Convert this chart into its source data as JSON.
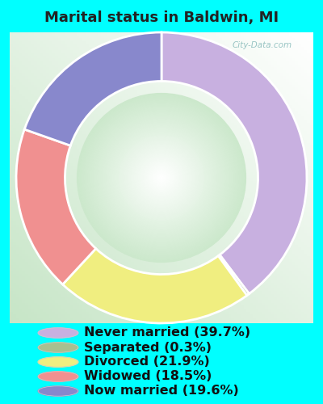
{
  "title": "Marital status in Baldwin, MI",
  "slices": [
    {
      "label": "Never married (39.7%)",
      "value": 39.7,
      "color": "#c8b0e0"
    },
    {
      "label": "Separated (0.3%)",
      "value": 0.3,
      "color": "#a8c090"
    },
    {
      "label": "Divorced (21.9%)",
      "value": 21.9,
      "color": "#f0ee80"
    },
    {
      "label": "Widowed (18.5%)",
      "value": 18.5,
      "color": "#f09090"
    },
    {
      "label": "Now married (19.6%)",
      "value": 19.6,
      "color": "#8888cc"
    }
  ],
  "bg_outer": "#00ffff",
  "title_color": "#222222",
  "legend_text_color": "#111111",
  "title_fontsize": 13,
  "legend_fontsize": 11.5,
  "watermark": "City-Data.com",
  "startangle": 90,
  "chart_bg_left": "#c8e8c8",
  "chart_bg_right": "#f0f8f0",
  "chart_bg_center": "#e8f5e0"
}
